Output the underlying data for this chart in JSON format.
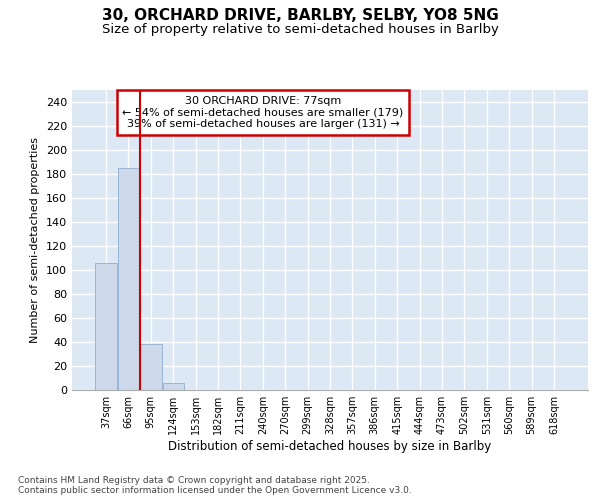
{
  "title": "30, ORCHARD DRIVE, BARLBY, SELBY, YO8 5NG",
  "subtitle": "Size of property relative to semi-detached houses in Barlby",
  "xlabel": "Distribution of semi-detached houses by size in Barlby",
  "ylabel": "Number of semi-detached properties",
  "categories": [
    "37sqm",
    "66sqm",
    "95sqm",
    "124sqm",
    "153sqm",
    "182sqm",
    "211sqm",
    "240sqm",
    "270sqm",
    "299sqm",
    "328sqm",
    "357sqm",
    "386sqm",
    "415sqm",
    "444sqm",
    "473sqm",
    "502sqm",
    "531sqm",
    "560sqm",
    "589sqm",
    "618sqm"
  ],
  "values": [
    106,
    185,
    38,
    6,
    0,
    0,
    0,
    0,
    0,
    0,
    0,
    0,
    0,
    0,
    0,
    0,
    0,
    0,
    0,
    0,
    0
  ],
  "bar_color": "#cdd9ea",
  "bar_edge_color": "#9ab4d4",
  "ylim": [
    0,
    250
  ],
  "yticks": [
    0,
    20,
    40,
    60,
    80,
    100,
    120,
    140,
    160,
    180,
    200,
    220,
    240
  ],
  "vline_x": 1.5,
  "vline_color": "#cc0000",
  "annotation_line1": "30 ORCHARD DRIVE: 77sqm",
  "annotation_line2": "← 54% of semi-detached houses are smaller (179)",
  "annotation_line3": "39% of semi-detached houses are larger (131) →",
  "annotation_box_color": "#cc0000",
  "background_color": "#dde8f5",
  "grid_color": "#ffffff",
  "footer_line1": "Contains HM Land Registry data © Crown copyright and database right 2025.",
  "footer_line2": "Contains public sector information licensed under the Open Government Licence v3.0.",
  "title_fontsize": 11,
  "subtitle_fontsize": 9.5
}
